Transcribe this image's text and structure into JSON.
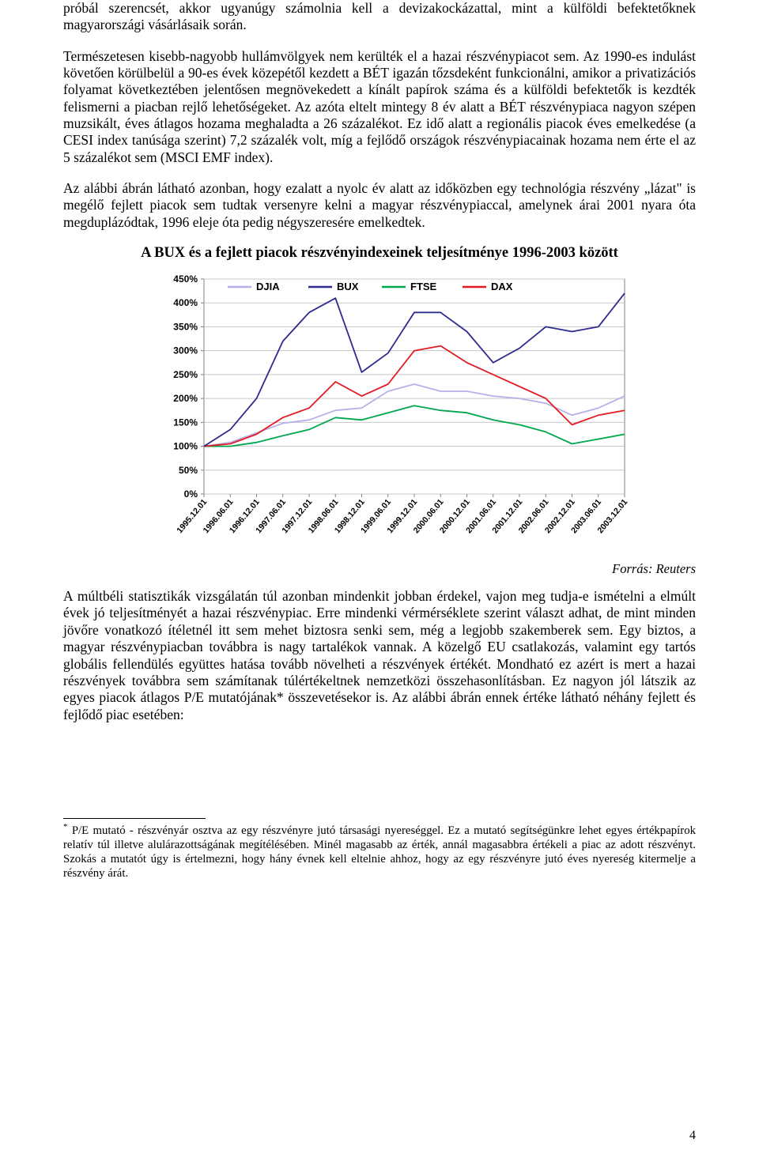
{
  "paragraphs": {
    "p1": "próbál szerencsét, akkor ugyanúgy számolnia kell a devizakockázattal, mint a külföldi befektetőknek magyarországi vásárlásaik során.",
    "p2": "Természetesen kisebb-nagyobb hullámvölgyek nem kerülték el a hazai részvénypiacot sem. Az 1990-es indulást követően körülbelül a 90-es évek közepétől kezdett a BÉT igazán tőzsdeként funkcionálni, amikor a privatizációs folyamat következtében jelentősen megnövekedett a kínált papírok száma és a külföldi befektetők is kezdték felismerni a piacban rejlő lehetőségeket. Az azóta eltelt mintegy 8 év alatt a BÉT részvénypiaca nagyon szépen muzsikált, éves átlagos hozama meghaladta a 26 százalékot. Ez idő alatt a regionális piacok éves emelkedése (a CESI index tanúsága szerint) 7,2 százalék volt, míg a fejlődő országok részvénypiacainak hozama nem érte el az 5 százalékot sem (MSCI EMF index).",
    "p3": "Az alábbi ábrán látható azonban, hogy ezalatt a nyolc év alatt az időközben egy technológia részvény „lázat\" is megélő fejlett piacok sem tudtak versenyre kelni a magyar részvénypiaccal, amelynek árai 2001 nyara óta megduplázódtak, 1996 eleje óta pedig négyszeresére emelkedtek.",
    "p4": "A múltbéli statisztikák vizsgálatán túl azonban mindenkit jobban érdekel, vajon meg tudja-e ismételni a elmúlt évek jó teljesítményét a hazai részvénypiac. Erre mindenki vérmérséklete szerint választ adhat, de mint minden jövőre vonatkozó ítéletnél itt sem mehet biztosra senki sem, még a legjobb szakemberek sem. Egy biztos, a magyar részvénypiacban továbbra is nagy tartalékok vannak. A közelgő EU csatlakozás, valamint egy tartós globális fellendülés együttes hatása tovább növelheti a részvények értékét. Mondható ez azért is mert a hazai részvények továbbra sem számítanak túlértékeltnek nemzetközi összehasonlításban. Ez nagyon jól látszik az egyes piacok átlagos P/E mutatójának* összevetésekor is. Az alábbi ábrán ennek értéke látható néhány fejlett és fejlődő piac esetében:"
  },
  "chart": {
    "title": "A BUX és a fejlett piacok részvényindexeinek teljesítménye 1996-2003 között",
    "type": "line",
    "legend": [
      "DJIA",
      "BUX",
      "FTSE",
      "DAX"
    ],
    "legend_colors": [
      "#b8b0e8",
      "#2e2b8f",
      "#00a650",
      "#e31b23"
    ],
    "y_ticks": [
      "0%",
      "50%",
      "100%",
      "150%",
      "200%",
      "250%",
      "300%",
      "350%",
      "400%",
      "450%"
    ],
    "ylim": [
      0,
      450
    ],
    "x_labels": [
      "1995.12.01",
      "1996.06.01",
      "1996.12.01",
      "1997.06.01",
      "1997.12.01",
      "1998.06.01",
      "1998.12.01",
      "1999.06.01",
      "1999.12.01",
      "2000.06.01",
      "2000.12.01",
      "2001.06.01",
      "2001.12.01",
      "2002.06.01",
      "2002.12.01",
      "2003.06.01",
      "2003.12.01"
    ],
    "background_color": "#ffffff",
    "grid_color": "#c8c8c8",
    "axis_color": "#808080",
    "label_fontsize": 12,
    "title_fontsize": 18,
    "line_width": 1.8,
    "series": {
      "DJIA": [
        100,
        108,
        128,
        148,
        155,
        175,
        180,
        215,
        230,
        215,
        215,
        205,
        200,
        190,
        165,
        180,
        205
      ],
      "BUX": [
        100,
        135,
        200,
        320,
        380,
        410,
        255,
        295,
        380,
        380,
        340,
        275,
        305,
        350,
        340,
        350,
        420
      ],
      "FTSE": [
        100,
        100,
        108,
        122,
        135,
        160,
        155,
        170,
        185,
        175,
        170,
        155,
        145,
        130,
        105,
        115,
        125
      ],
      "DAX": [
        100,
        105,
        125,
        160,
        180,
        235,
        205,
        230,
        300,
        310,
        275,
        250,
        225,
        200,
        145,
        165,
        175
      ]
    },
    "source": "Forrás: Reuters"
  },
  "footnote": {
    "marker": "*",
    "text": "P/E mutató - részvényár osztva az egy részvényre jutó társasági nyereséggel. Ez a mutató segítségünkre lehet egyes értékpapírok relatív túl illetve alulárazottságának megítélésében. Minél magasabb az érték, annál magasabbra értékeli a piac az adott részvényt. Szokás a mutatót úgy is értelmezni, hogy hány évnek kell eltelnie ahhoz, hogy az egy részvényre jutó éves nyereség kitermelje a részvény árát."
  },
  "page_number": "4"
}
